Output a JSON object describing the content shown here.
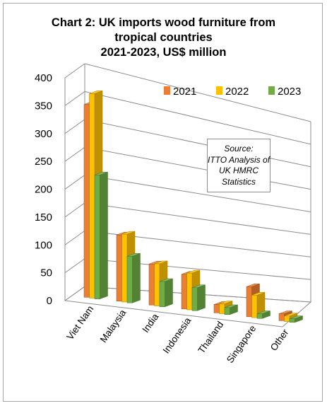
{
  "title_lines": [
    "Chart 2: UK imports wood furniture from",
    "tropical countries",
    "2021-2023, US$ million"
  ],
  "source_lines": [
    "Source:",
    "ITTO Analysis of",
    "UK HMRC",
    "Statistics"
  ],
  "chart_data": {
    "type": "bar",
    "title": "Chart 2: UK imports wood furniture from tropical countries 2021-2023, US$ million",
    "categories": [
      "Viet Nam",
      "Malaysia",
      "India",
      "Indonesia",
      "Thailand",
      "Singapore",
      "Other"
    ],
    "series": [
      {
        "name": "2021",
        "color": "#ed7d31",
        "values": [
          345,
          122,
          78,
          68,
          17,
          63,
          15
        ]
      },
      {
        "name": "2022",
        "color": "#ffc000",
        "values": [
          366,
          125,
          80,
          72,
          20,
          47,
          12
        ]
      },
      {
        "name": "2023",
        "color": "#70ad47",
        "values": [
          222,
          86,
          48,
          45,
          14,
          10,
          8
        ]
      }
    ],
    "ylim": [
      0,
      400
    ],
    "yticks": [
      "0",
      "50",
      "100",
      "150",
      "200",
      "250",
      "300",
      "350",
      "400"
    ],
    "xlabel": "",
    "ylabel": "",
    "grid": true,
    "legend": "top-right",
    "style": "3d-clustered-column"
  }
}
